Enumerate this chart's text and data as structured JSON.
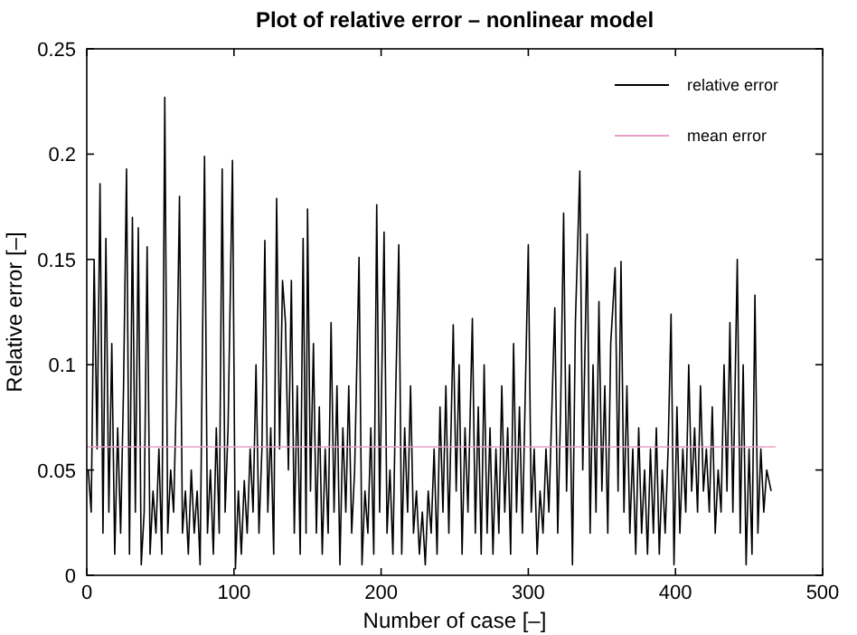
{
  "chart_data": {
    "type": "line",
    "title": "Plot of relative error – nonlinear model",
    "xlabel": "Number of case [–]",
    "ylabel": "Relative error [–]",
    "xlim": [
      0,
      500
    ],
    "xticks": [
      0,
      100,
      200,
      300,
      400,
      500
    ],
    "ylim": [
      0,
      0.25
    ],
    "yticks": [
      0,
      0.05,
      0.1,
      0.15,
      0.2,
      0.25
    ],
    "grid": false,
    "legend": "top right",
    "series": [
      {
        "name": "relative error",
        "color": "#000000",
        "x": [
          1,
          3,
          5,
          7,
          9,
          11,
          13,
          15,
          17,
          19,
          21,
          23,
          25,
          27,
          29,
          31,
          33,
          35,
          37,
          39,
          41,
          43,
          45,
          47,
          49,
          51,
          53,
          55,
          57,
          59,
          61,
          63,
          65,
          67,
          69,
          71,
          73,
          75,
          77,
          80,
          82,
          84,
          86,
          88,
          90,
          92,
          94,
          96,
          99,
          101,
          103,
          105,
          107,
          109,
          111,
          113,
          115,
          117,
          119,
          121,
          123,
          125,
          127,
          129,
          131,
          133,
          135,
          137,
          139,
          141,
          143,
          145,
          147,
          149,
          150,
          152,
          154,
          156,
          158,
          160,
          162,
          164,
          166,
          168,
          170,
          172,
          174,
          176,
          178,
          180,
          182,
          185,
          187,
          189,
          191,
          193,
          195,
          197,
          199,
          202,
          204,
          206,
          208,
          210,
          212,
          214,
          216,
          218,
          220,
          222,
          224,
          226,
          228,
          230,
          232,
          234,
          236,
          238,
          240,
          242,
          244,
          246,
          249,
          251,
          253,
          255,
          257,
          259,
          262,
          264,
          266,
          268,
          270,
          272,
          274,
          276,
          278,
          280,
          282,
          284,
          286,
          288,
          290,
          292,
          294,
          296,
          300,
          302,
          304,
          306,
          308,
          310,
          312,
          314,
          318,
          320,
          322,
          324,
          326,
          328,
          330,
          332,
          335,
          337,
          340,
          342,
          344,
          346,
          348,
          350,
          352,
          354,
          356,
          359,
          361,
          363,
          365,
          367,
          369,
          371,
          373,
          375,
          377,
          379,
          381,
          383,
          385,
          387,
          389,
          391,
          393,
          395,
          397,
          399,
          401,
          403,
          405,
          407,
          409,
          411,
          413,
          415,
          417,
          419,
          421,
          423,
          425,
          427,
          429,
          431,
          433,
          435,
          437,
          439,
          442,
          444,
          446,
          448,
          450,
          452,
          454,
          456,
          458,
          460,
          462,
          465
        ],
        "values": [
          0.05,
          0.03,
          0.15,
          0.06,
          0.186,
          0.02,
          0.16,
          0.03,
          0.11,
          0.01,
          0.07,
          0.02,
          0.09,
          0.193,
          0.01,
          0.17,
          0.03,
          0.165,
          0.005,
          0.03,
          0.156,
          0.01,
          0.04,
          0.02,
          0.06,
          0.01,
          0.227,
          0.02,
          0.05,
          0.03,
          0.09,
          0.18,
          0.02,
          0.04,
          0.01,
          0.05,
          0.02,
          0.04,
          0.005,
          0.199,
          0.02,
          0.05,
          0.01,
          0.07,
          0.02,
          0.193,
          0.03,
          0.07,
          0.197,
          0.003,
          0.04,
          0.01,
          0.045,
          0.02,
          0.06,
          0.03,
          0.1,
          0.02,
          0.06,
          0.159,
          0.03,
          0.07,
          0.01,
          0.179,
          0.06,
          0.14,
          0.12,
          0.05,
          0.14,
          0.02,
          0.09,
          0.01,
          0.16,
          0.02,
          0.174,
          0.04,
          0.11,
          0.02,
          0.08,
          0.01,
          0.06,
          0.02,
          0.12,
          0.03,
          0.09,
          0.005,
          0.07,
          0.03,
          0.09,
          0.02,
          0.05,
          0.151,
          0.005,
          0.04,
          0.02,
          0.07,
          0.01,
          0.176,
          0.03,
          0.163,
          0.02,
          0.05,
          0.01,
          0.09,
          0.157,
          0.01,
          0.07,
          0.03,
          0.09,
          0.02,
          0.04,
          0.01,
          0.03,
          0.005,
          0.04,
          0.02,
          0.06,
          0.01,
          0.08,
          0.03,
          0.09,
          0.02,
          0.119,
          0.04,
          0.1,
          0.01,
          0.07,
          0.03,
          0.122,
          0.02,
          0.08,
          0.01,
          0.1,
          0.02,
          0.07,
          0.01,
          0.06,
          0.02,
          0.09,
          0.03,
          0.07,
          0.01,
          0.11,
          0.03,
          0.08,
          0.02,
          0.157,
          0.03,
          0.06,
          0.01,
          0.04,
          0.02,
          0.06,
          0.03,
          0.127,
          0.02,
          0.08,
          0.172,
          0.04,
          0.1,
          0.005,
          0.12,
          0.192,
          0.05,
          0.162,
          0.02,
          0.1,
          0.03,
          0.13,
          0.04,
          0.09,
          0.02,
          0.11,
          0.146,
          0.04,
          0.149,
          0.03,
          0.09,
          0.02,
          0.06,
          0.01,
          0.07,
          0.02,
          0.05,
          0.01,
          0.06,
          0.02,
          0.07,
          0.01,
          0.05,
          0.02,
          0.06,
          0.124,
          0.005,
          0.08,
          0.02,
          0.06,
          0.03,
          0.1,
          0.04,
          0.07,
          0.03,
          0.09,
          0.04,
          0.06,
          0.03,
          0.08,
          0.02,
          0.05,
          0.03,
          0.1,
          0.04,
          0.12,
          0.03,
          0.15,
          0.02,
          0.1,
          0.005,
          0.06,
          0.01,
          0.133,
          0.02,
          0.06,
          0.03,
          0.05,
          0.04
        ]
      },
      {
        "name": "mean error",
        "color": "#e8a0c8",
        "x": [
          0,
          468
        ],
        "values": [
          0.061,
          0.061
        ]
      }
    ]
  }
}
